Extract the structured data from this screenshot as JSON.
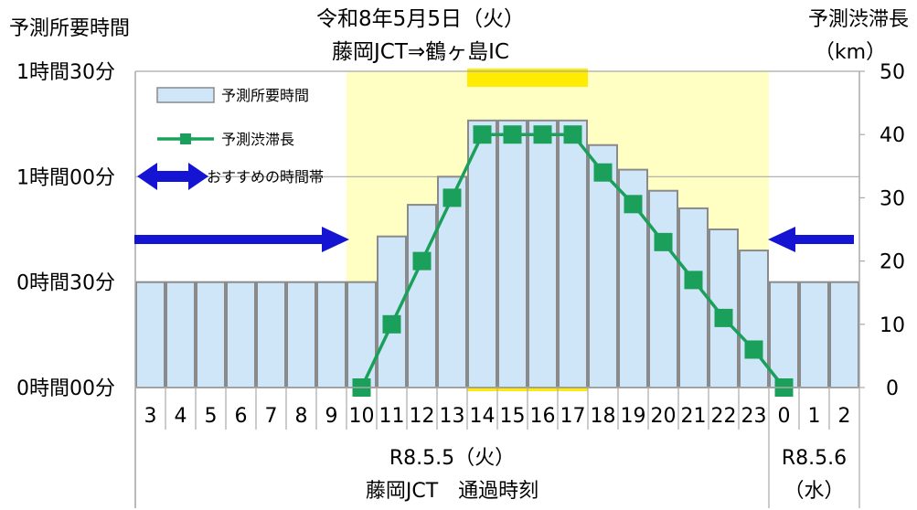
{
  "chart_data": {
    "type": "bar",
    "title": [
      "令和8年5月5日（火）",
      "藤岡JCT⇒鶴ヶ島IC"
    ],
    "left_axis_title": "予測所要時間",
    "right_axis_title": [
      "予測渋滞長",
      "（km）"
    ],
    "left_ticks": [
      {
        "label": "0時間00分",
        "minutes": 0
      },
      {
        "label": "0時間30分",
        "minutes": 30
      },
      {
        "label": "1時間00分",
        "minutes": 60
      },
      {
        "label": "1時間30分",
        "minutes": 90
      }
    ],
    "right_ticks": [
      "0",
      "10",
      "20",
      "30",
      "40",
      "50"
    ],
    "left_ylim_minutes": [
      0,
      90
    ],
    "right_ylim_km": [
      0,
      50
    ],
    "categories": [
      "3",
      "4",
      "5",
      "6",
      "7",
      "8",
      "9",
      "10",
      "11",
      "12",
      "13",
      "14",
      "15",
      "16",
      "17",
      "18",
      "19",
      "20",
      "21",
      "22",
      "23",
      "0",
      "1",
      "2"
    ],
    "series": [
      {
        "name": "予測所要時間",
        "kind": "bar",
        "axis": "left",
        "unit": "minutes",
        "values": [
          30,
          30,
          30,
          30,
          30,
          30,
          30,
          30,
          43,
          52,
          60,
          76,
          76,
          76,
          76,
          69,
          62,
          56,
          51,
          45,
          39,
          30,
          30,
          30
        ]
      },
      {
        "name": "予測渋滞長",
        "kind": "line",
        "axis": "right",
        "unit": "km",
        "values": [
          null,
          null,
          null,
          null,
          null,
          null,
          null,
          0,
          10,
          20,
          30,
          40,
          40,
          40,
          40,
          34,
          29,
          23,
          17,
          11,
          6,
          0,
          null,
          null
        ]
      }
    ],
    "recommended_label": "おすすめの時間帯",
    "peak_category_range": [
      "14",
      "17"
    ],
    "recommended_shading_range": [
      "10",
      "23"
    ],
    "xlabel_groups": [
      {
        "lines": [
          "R8.5.5（火）",
          "藤岡JCT　通過時刻"
        ],
        "from": "3",
        "to": "23"
      },
      {
        "lines": [
          "R8.5.6",
          "（水）"
        ],
        "from": "0",
        "to": "2"
      }
    ],
    "grid": true,
    "legend_position": "top-left",
    "colors": {
      "bar_fill": "#cfe6f8",
      "bar_stroke": "#8a8a8a",
      "line": "#1aa05a",
      "shade": "#ffffc4",
      "peak": "#ffec00",
      "arrow": "#1414d2",
      "grid": "#a9a9a9"
    }
  }
}
